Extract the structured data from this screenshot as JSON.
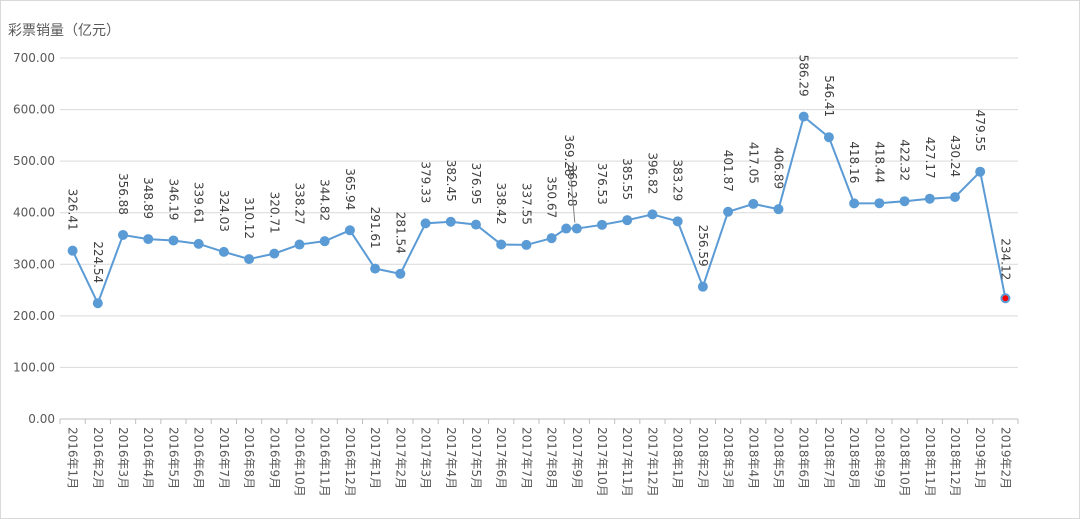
{
  "chart_data": {
    "type": "line",
    "ylabel": "彩票销量（亿元）",
    "ylim": [
      0,
      700
    ],
    "yticks": [
      "0.00",
      "100.00",
      "200.00",
      "300.00",
      "400.00",
      "500.00",
      "600.00",
      "700.00"
    ],
    "grid": true,
    "categories": [
      "2016年1月",
      "2016年2月",
      "2016年3月",
      "2016年4月",
      "2016年5月",
      "2016年6月",
      "2016年7月",
      "2016年8月",
      "2016年9月",
      "2016年10月",
      "2016年11月",
      "2016年12月",
      "2017年1月",
      "2017年2月",
      "2017年3月",
      "2017年4月",
      "2017年5月",
      "2017年6月",
      "2017年7月",
      "2017年8月",
      "2017年9月",
      "2017年10月",
      "2017年11月",
      "2017年12月",
      "2018年1月",
      "2018年2月",
      "2018年3月",
      "2018年4月",
      "2018年5月",
      "2018年6月",
      "2018年7月",
      "2018年8月",
      "2018年9月",
      "2018年10月",
      "2018年11月",
      "2018年12月",
      "2019年1月",
      "2019年2月"
    ],
    "values": [
      326.41,
      224.54,
      356.88,
      348.89,
      346.19,
      339.61,
      324.03,
      310.12,
      320.71,
      338.27,
      344.82,
      365.94,
      291.61,
      281.54,
      379.33,
      382.45,
      376.95,
      338.42,
      337.55,
      350.67,
      369.28,
      376.53,
      385.55,
      396.82,
      383.29,
      256.59,
      401.87,
      417.05,
      406.89,
      586.29,
      546.41,
      418.16,
      418.44,
      422.32,
      427.17,
      430.24,
      479.55,
      234.12
    ],
    "labels": [
      "326.41",
      "224.54",
      "356.88",
      "348.89",
      "346.19",
      "339.61",
      "324.03",
      "310.12",
      "320.71",
      "338.27",
      "344.82",
      "365.94",
      "291.61",
      "281.54",
      "379.33",
      "382.45",
      "376.95",
      "338.42",
      "337.55",
      "350.67",
      "369.28",
      "376.53",
      "385.55",
      "396.82",
      "383.29",
      "256.59",
      "401.87",
      "417.05",
      "406.89",
      "586.29",
      "546.41",
      "418.16",
      "418.44",
      "422.32",
      "427.17",
      "430.24",
      "479.55",
      "234.12"
    ],
    "extra_point": {
      "x": "2017年9月",
      "value": 369.28
    },
    "colors": {
      "line": "#5b9bd5",
      "highlight": "#ff0000",
      "grid": "#d9d9d9",
      "text": "#404040"
    }
  }
}
